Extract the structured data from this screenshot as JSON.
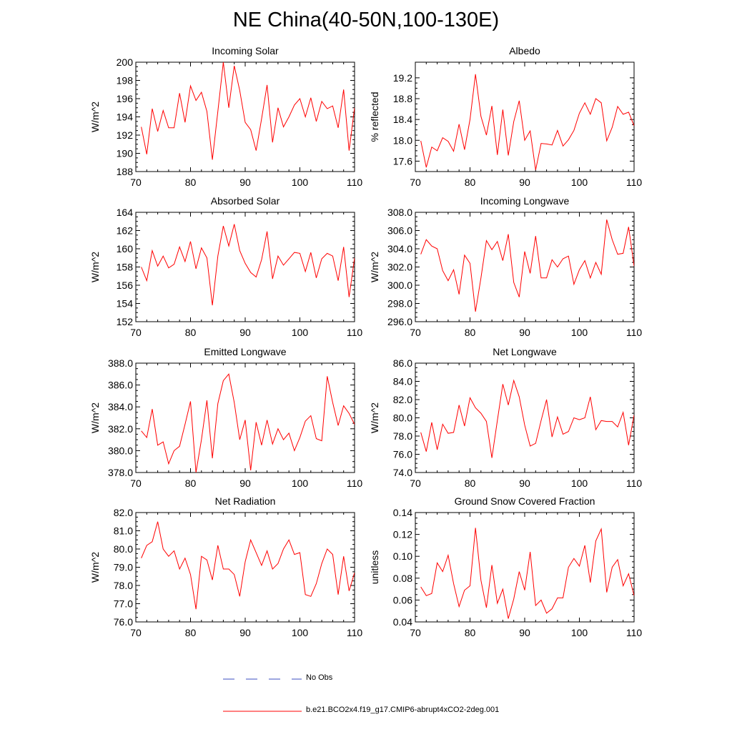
{
  "title": "NE China(40-50N,100-130E)",
  "colors": {
    "model_line": "#ff0000",
    "obs_line": "#3b4cc0",
    "axis": "#000000"
  },
  "legend": {
    "obs_label": "No Obs",
    "model_label": "b.e21.BCO2x4.f19_g17.CMIP6-abrupt4xCO2-2deg.001"
  },
  "chart_data": [
    {
      "type": "line",
      "title": "Incoming Solar",
      "ylabel": "W/m^2",
      "xlim": [
        70,
        110
      ],
      "ylim": [
        188,
        200
      ],
      "ydecimals": 0,
      "xticks": [
        70,
        80,
        90,
        100,
        110
      ],
      "yticks": [
        188,
        190,
        192,
        194,
        196,
        198,
        200
      ],
      "x_start": 71,
      "values": [
        192.9,
        189.9,
        194.9,
        192.4,
        194.7,
        192.8,
        192.8,
        196.6,
        193.4,
        197.4,
        195.8,
        196.7,
        194.6,
        189.3,
        194.6,
        200.0,
        195.0,
        199.6,
        196.9,
        193.4,
        192.6,
        190.3,
        193.8,
        197.5,
        191.2,
        195.0,
        192.9,
        194.0,
        195.3,
        196.0,
        194.0,
        196.1,
        193.5,
        195.7,
        194.9,
        195.2,
        192.8,
        197.0,
        190.3,
        195.0
      ]
    },
    {
      "type": "line",
      "title": "Albedo",
      "ylabel": "% reflected",
      "xlim": [
        70,
        110
      ],
      "ylim": [
        17.4,
        19.5
      ],
      "ydecimals": 1,
      "xticks": [
        70,
        80,
        90,
        100,
        110
      ],
      "yticks": [
        17.6,
        18.0,
        18.4,
        18.8,
        19.2
      ],
      "x_start": 71,
      "values": [
        17.99,
        17.48,
        17.87,
        17.8,
        18.05,
        17.98,
        17.79,
        18.31,
        17.82,
        18.4,
        19.27,
        18.46,
        18.1,
        18.66,
        17.72,
        18.59,
        17.71,
        18.36,
        18.76,
        18.0,
        18.18,
        17.43,
        17.94,
        17.93,
        17.91,
        18.19,
        17.89,
        18.01,
        18.19,
        18.52,
        18.72,
        18.5,
        18.8,
        18.72,
        17.99,
        18.25,
        18.65,
        18.5,
        18.54,
        18.28
      ]
    },
    {
      "type": "line",
      "title": "Absorbed Solar",
      "ylabel": "W/m^2",
      "xlim": [
        70,
        110
      ],
      "ylim": [
        152,
        164
      ],
      "ydecimals": 0,
      "xticks": [
        70,
        80,
        90,
        100,
        110
      ],
      "yticks": [
        152,
        154,
        156,
        158,
        160,
        162,
        164
      ],
      "x_start": 71,
      "values": [
        158.0,
        156.5,
        159.8,
        158.1,
        159.2,
        157.9,
        158.3,
        160.2,
        158.6,
        160.8,
        157.8,
        160.1,
        159.0,
        153.8,
        159.2,
        162.5,
        160.3,
        162.7,
        159.8,
        158.4,
        157.4,
        156.9,
        158.8,
        161.9,
        156.7,
        159.2,
        158.2,
        158.9,
        159.6,
        159.5,
        157.5,
        159.6,
        156.8,
        158.9,
        159.5,
        159.2,
        156.5,
        160.2,
        154.7,
        159.0
      ]
    },
    {
      "type": "line",
      "title": "Incoming Longwave",
      "ylabel": "W/m^2",
      "xlim": [
        70,
        110
      ],
      "ylim": [
        296,
        308
      ],
      "ydecimals": 1,
      "xticks": [
        70,
        80,
        90,
        100,
        110
      ],
      "yticks": [
        296,
        298,
        300,
        302,
        304,
        306,
        308
      ],
      "x_start": 71,
      "values": [
        303.4,
        305.0,
        304.3,
        304.0,
        301.6,
        300.5,
        301.7,
        299.0,
        303.3,
        302.4,
        297.1,
        300.8,
        304.9,
        303.9,
        304.8,
        302.7,
        305.6,
        300.3,
        298.7,
        303.7,
        301.3,
        305.4,
        300.8,
        300.8,
        302.8,
        302.0,
        302.9,
        303.2,
        300.1,
        301.7,
        302.7,
        300.8,
        302.5,
        301.2,
        307.2,
        305.0,
        303.4,
        303.5,
        306.4,
        302.1
      ]
    },
    {
      "type": "line",
      "title": "Emitted Longwave",
      "ylabel": "W/m^2",
      "xlim": [
        70,
        110
      ],
      "ylim": [
        378,
        388
      ],
      "ydecimals": 1,
      "xticks": [
        70,
        80,
        90,
        100,
        110
      ],
      "yticks": [
        378,
        380,
        382,
        384,
        386,
        388
      ],
      "x_start": 71,
      "values": [
        381.8,
        381.2,
        383.8,
        380.5,
        380.8,
        378.8,
        380.0,
        380.4,
        382.4,
        384.5,
        378.0,
        381.0,
        384.6,
        379.3,
        384.3,
        386.4,
        387.0,
        384.4,
        381.0,
        382.8,
        378.2,
        382.6,
        380.5,
        382.8,
        380.6,
        382.0,
        381.0,
        381.6,
        380.0,
        381.2,
        382.7,
        383.2,
        381.1,
        380.9,
        386.8,
        384.4,
        382.3,
        384.1,
        383.4,
        382.4
      ]
    },
    {
      "type": "line",
      "title": "Net Longwave",
      "ylabel": "W/m^2",
      "xlim": [
        70,
        110
      ],
      "ylim": [
        74,
        86
      ],
      "ydecimals": 1,
      "xticks": [
        70,
        80,
        90,
        100,
        110
      ],
      "yticks": [
        74,
        76,
        78,
        80,
        82,
        84,
        86
      ],
      "x_start": 71,
      "values": [
        78.4,
        76.3,
        79.5,
        76.5,
        79.3,
        78.3,
        78.4,
        81.4,
        79.1,
        82.2,
        81.1,
        80.5,
        79.6,
        75.6,
        79.7,
        83.7,
        81.4,
        84.1,
        82.3,
        79.2,
        76.9,
        77.2,
        79.7,
        82.0,
        77.9,
        80.1,
        78.2,
        78.5,
        80.0,
        79.8,
        80.0,
        82.3,
        78.7,
        79.7,
        79.6,
        79.6,
        79.0,
        80.6,
        77.0,
        80.3
      ]
    },
    {
      "type": "line",
      "title": "Net Radiation",
      "ylabel": "W/m^2",
      "xlim": [
        70,
        110
      ],
      "ylim": [
        76,
        82
      ],
      "ydecimals": 1,
      "xticks": [
        70,
        80,
        90,
        100,
        110
      ],
      "yticks": [
        76,
        77,
        78,
        79,
        80,
        81,
        82
      ],
      "x_start": 71,
      "values": [
        79.5,
        80.2,
        80.4,
        81.5,
        80.0,
        79.6,
        79.9,
        78.9,
        79.5,
        78.6,
        76.7,
        79.6,
        79.4,
        78.3,
        80.2,
        78.9,
        78.9,
        78.6,
        77.4,
        79.3,
        80.5,
        79.8,
        79.1,
        79.9,
        78.9,
        79.2,
        80.0,
        80.5,
        79.7,
        79.8,
        77.5,
        77.4,
        78.1,
        79.2,
        80.0,
        79.7,
        77.5,
        79.6,
        77.7,
        78.7
      ]
    },
    {
      "type": "line",
      "title": "Ground Snow Covered Fraction",
      "ylabel": "unitless",
      "xlim": [
        70,
        110
      ],
      "ylim": [
        0.04,
        0.14
      ],
      "ydecimals": 2,
      "xticks": [
        70,
        80,
        90,
        100,
        110
      ],
      "yticks": [
        0.04,
        0.06,
        0.08,
        0.1,
        0.12,
        0.14
      ],
      "x_start": 71,
      "values": [
        0.072,
        0.064,
        0.066,
        0.094,
        0.086,
        0.101,
        0.075,
        0.054,
        0.069,
        0.073,
        0.126,
        0.078,
        0.053,
        0.092,
        0.057,
        0.07,
        0.043,
        0.061,
        0.086,
        0.069,
        0.104,
        0.055,
        0.06,
        0.048,
        0.052,
        0.062,
        0.062,
        0.09,
        0.098,
        0.091,
        0.11,
        0.076,
        0.114,
        0.125,
        0.067,
        0.09,
        0.097,
        0.073,
        0.084,
        0.064
      ]
    }
  ]
}
